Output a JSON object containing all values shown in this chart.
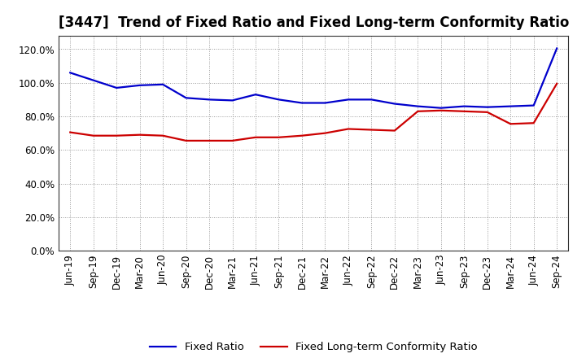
{
  "title": "[3447]  Trend of Fixed Ratio and Fixed Long-term Conformity Ratio",
  "x_labels": [
    "Jun-19",
    "Sep-19",
    "Dec-19",
    "Mar-20",
    "Jun-20",
    "Sep-20",
    "Dec-20",
    "Mar-21",
    "Jun-21",
    "Sep-21",
    "Dec-21",
    "Mar-22",
    "Jun-22",
    "Sep-22",
    "Dec-22",
    "Mar-23",
    "Jun-23",
    "Sep-23",
    "Dec-23",
    "Mar-24",
    "Jun-24",
    "Sep-24"
  ],
  "fixed_ratio": [
    106.0,
    101.5,
    97.0,
    98.5,
    99.0,
    91.0,
    90.0,
    89.5,
    93.0,
    90.0,
    88.0,
    88.0,
    90.0,
    90.0,
    87.5,
    86.0,
    85.0,
    86.0,
    85.5,
    86.0,
    86.5,
    120.5
  ],
  "fixed_ltcr": [
    70.5,
    68.5,
    68.5,
    69.0,
    68.5,
    65.5,
    65.5,
    65.5,
    67.5,
    67.5,
    68.5,
    70.0,
    72.5,
    72.0,
    71.5,
    83.0,
    83.5,
    83.0,
    82.5,
    75.5,
    76.0,
    99.5
  ],
  "fixed_ratio_color": "#0000cc",
  "fixed_ltcr_color": "#cc0000",
  "ylim": [
    0,
    128
  ],
  "yticks": [
    0,
    20,
    40,
    60,
    80,
    100,
    120
  ],
  "background_color": "#ffffff",
  "plot_area_color": "#ffffff",
  "grid_color": "#999999",
  "legend_fixed_ratio": "Fixed Ratio",
  "legend_fixed_ltcr": "Fixed Long-term Conformity Ratio",
  "title_fontsize": 12,
  "tick_fontsize": 8.5,
  "legend_fontsize": 9.5,
  "line_width": 1.6
}
